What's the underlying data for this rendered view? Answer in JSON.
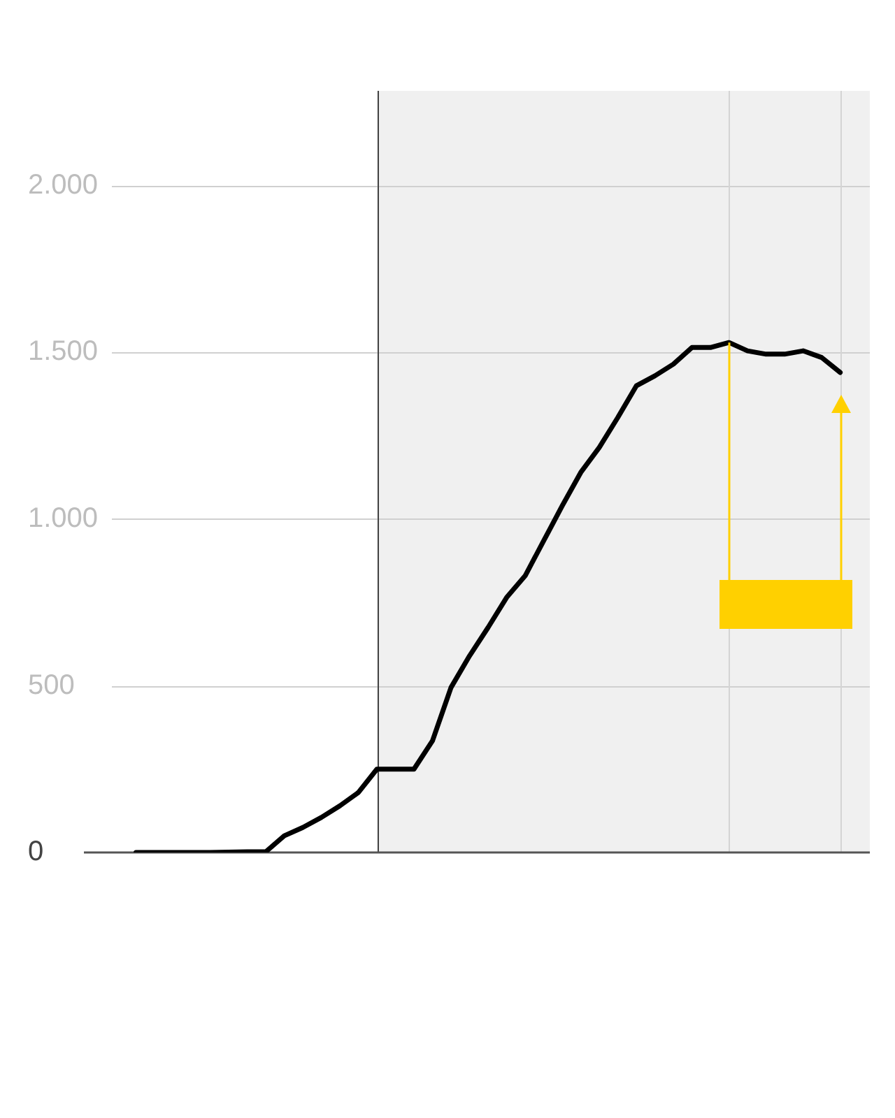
{
  "chart_data": {
    "type": "line",
    "categories": [
      null,
      null,
      null,
      null,
      null,
      null,
      null,
      null,
      null,
      null,
      null,
      null,
      null,
      null,
      null,
      null,
      null,
      null,
      null,
      null,
      null,
      null,
      null,
      null,
      null,
      null,
      null,
      null,
      null,
      null,
      null,
      null,
      null,
      null,
      null,
      null,
      null,
      null,
      null
    ],
    "series": [
      {
        "color": "#000000",
        "values": [
          0,
          0,
          0,
          0,
          0,
          1,
          2,
          2,
          50,
          75,
          105,
          140,
          180,
          250,
          250,
          250,
          335,
          495,
          590,
          675,
          765,
          830,
          935,
          1040,
          1140,
          1215,
          1305,
          1400,
          1430,
          1465,
          1515,
          1515,
          1530,
          1505,
          1495,
          1495,
          1505,
          1485,
          1440
        ]
      }
    ],
    "ylim": [
      0,
      2285
    ],
    "yticks": [
      0,
      500,
      {
        "value": 1000,
        "label": "1.000"
      },
      {
        "value": 1500,
        "label": "1.500"
      },
      {
        "value": 2000,
        "label": "2.000"
      }
    ],
    "tick_labels": "y",
    "grid": "y",
    "marker": "none",
    "line_style": "solid"
  }
}
